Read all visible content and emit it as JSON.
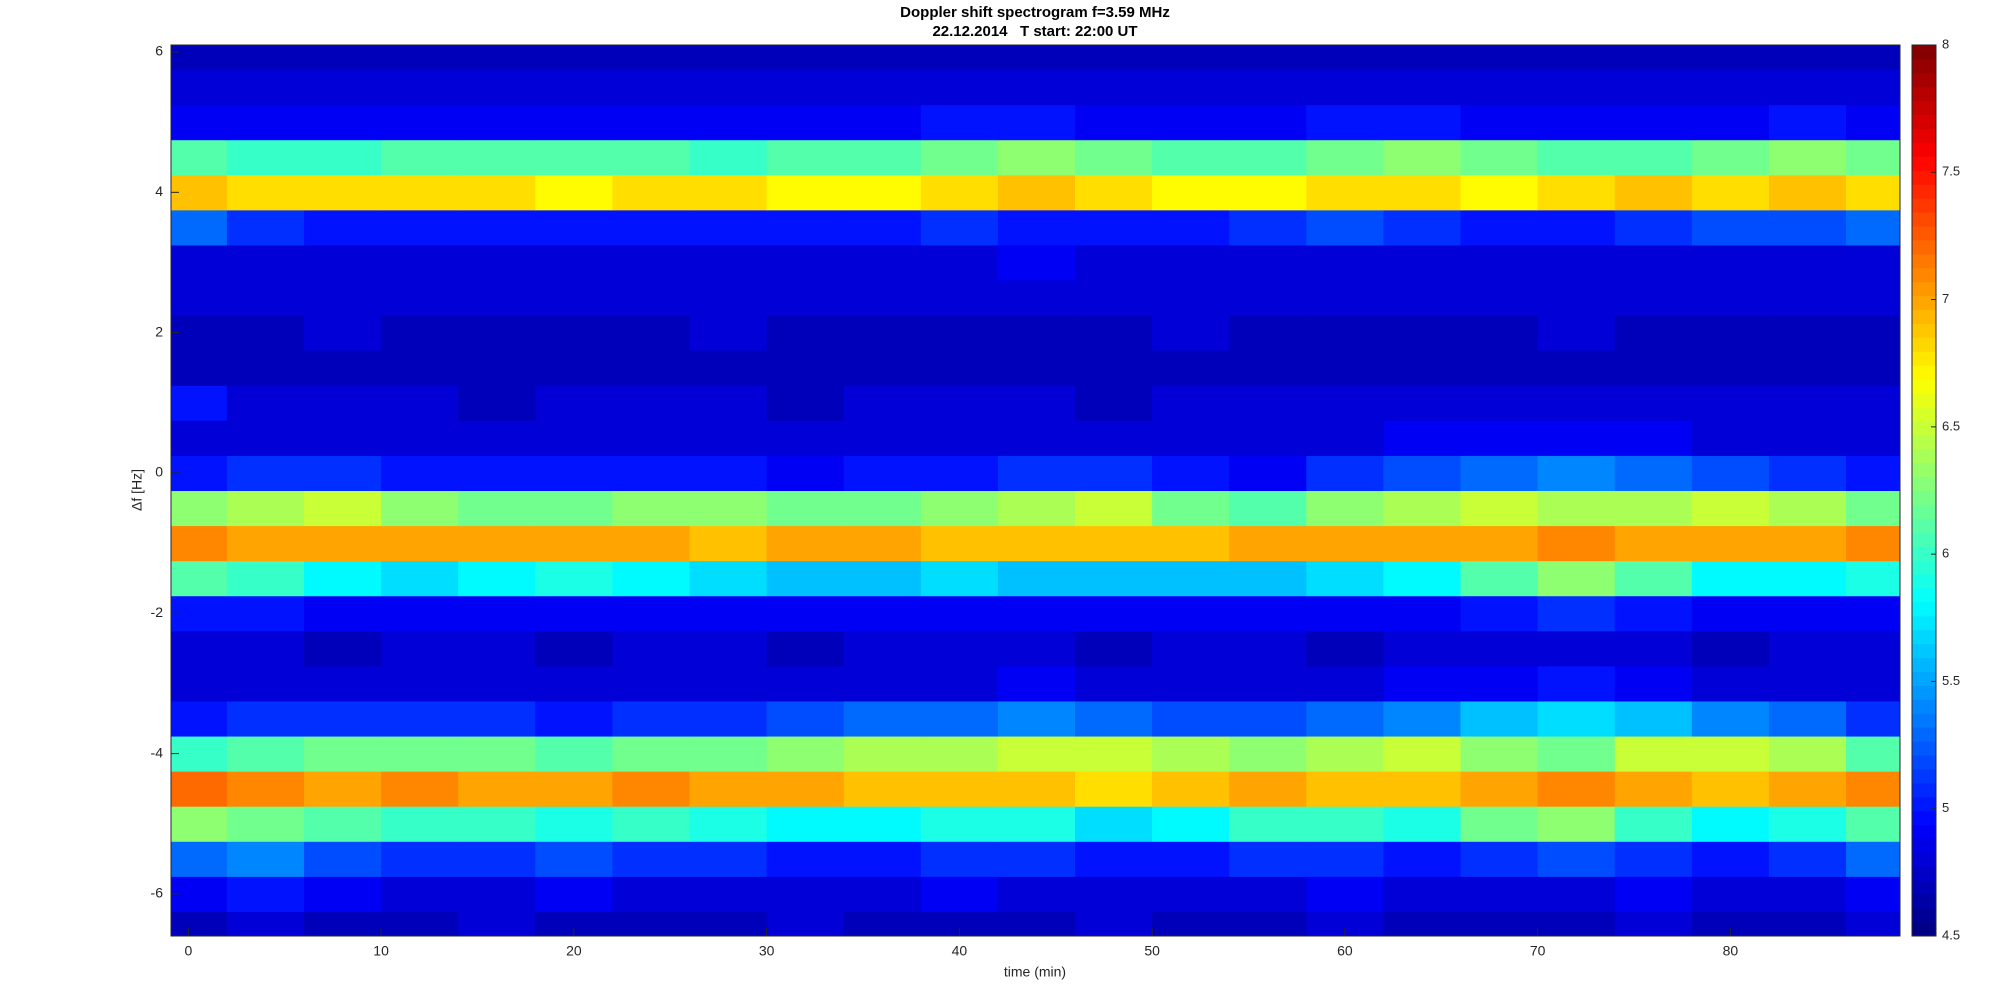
{
  "chart_data": {
    "type": "heatmap",
    "title": "Doppler shift spectrogram f=3.59 MHz",
    "subtitle": "22.12.2014   T start: 22:00 UT",
    "x_label": "time (min)",
    "y_label": "Δf [Hz]",
    "colormap": "jet",
    "xlim": [
      -0.9,
      88.8
    ],
    "xticks": [
      0,
      10,
      20,
      30,
      40,
      50,
      60,
      70,
      80
    ],
    "ylim": [
      -6.6,
      6.1
    ],
    "yticks": [
      -6,
      -4,
      -2,
      0,
      2,
      4,
      6
    ],
    "clim": [
      4.5,
      8
    ],
    "cticks": [
      4.5,
      5,
      5.5,
      6,
      6.5,
      7,
      7.5,
      8
    ],
    "x": [
      0,
      4,
      8,
      12,
      16,
      20,
      24,
      28,
      32,
      36,
      40,
      44,
      48,
      52,
      56,
      60,
      64,
      68,
      72,
      76,
      80,
      84,
      88
    ],
    "y": [
      -6.5,
      -6,
      -5.5,
      -5,
      -4.5,
      -4,
      -3.5,
      -3,
      -2.5,
      -2,
      -1.5,
      -1,
      -0.5,
      0,
      0.5,
      1,
      1.5,
      2,
      2.5,
      3,
      3.5,
      4,
      4.5,
      5,
      5.5,
      6
    ],
    "z": [
      [
        4.7,
        4.8,
        4.7,
        4.7,
        4.8,
        4.7,
        4.7,
        4.7,
        4.8,
        4.7,
        4.7,
        4.7,
        4.8,
        4.7,
        4.7,
        4.8,
        4.7,
        4.7,
        4.7,
        4.8,
        4.7,
        4.7,
        4.8
      ],
      [
        4.9,
        5.0,
        4.9,
        4.8,
        4.8,
        4.9,
        4.8,
        4.8,
        4.8,
        4.8,
        4.9,
        4.8,
        4.8,
        4.8,
        4.8,
        4.9,
        4.8,
        4.8,
        4.8,
        4.9,
        4.8,
        4.8,
        4.9
      ],
      [
        5.3,
        5.4,
        5.2,
        5.1,
        5.1,
        5.2,
        5.1,
        5.1,
        5.0,
        5.0,
        5.1,
        5.1,
        5.0,
        5.0,
        5.1,
        5.1,
        5.0,
        5.1,
        5.2,
        5.1,
        5.0,
        5.1,
        5.3
      ],
      [
        6.3,
        6.2,
        6.1,
        6.0,
        6.0,
        5.9,
        6.0,
        5.9,
        5.8,
        5.8,
        5.9,
        5.9,
        5.7,
        5.8,
        6.0,
        6.0,
        5.9,
        6.2,
        6.3,
        6.0,
        5.8,
        5.9,
        6.1
      ],
      [
        7.2,
        7.1,
        7.0,
        7.1,
        7.0,
        7.0,
        7.1,
        7.0,
        7.0,
        6.9,
        6.9,
        6.9,
        6.8,
        6.9,
        7.0,
        6.9,
        6.9,
        7.0,
        7.1,
        7.0,
        6.9,
        7.0,
        7.1
      ],
      [
        6.0,
        6.1,
        6.2,
        6.2,
        6.2,
        6.1,
        6.2,
        6.2,
        6.3,
        6.4,
        6.4,
        6.5,
        6.5,
        6.4,
        6.3,
        6.4,
        6.5,
        6.3,
        6.2,
        6.5,
        6.5,
        6.4,
        6.1
      ],
      [
        5.0,
        5.1,
        5.1,
        5.1,
        5.1,
        5.0,
        5.1,
        5.1,
        5.2,
        5.3,
        5.3,
        5.4,
        5.3,
        5.2,
        5.2,
        5.3,
        5.4,
        5.6,
        5.7,
        5.6,
        5.4,
        5.3,
        5.1
      ],
      [
        4.8,
        4.8,
        4.8,
        4.8,
        4.8,
        4.8,
        4.8,
        4.8,
        4.8,
        4.8,
        4.8,
        4.9,
        4.8,
        4.8,
        4.8,
        4.8,
        4.9,
        4.9,
        5.0,
        4.9,
        4.8,
        4.8,
        4.8
      ],
      [
        4.8,
        4.8,
        4.7,
        4.8,
        4.8,
        4.7,
        4.8,
        4.8,
        4.7,
        4.8,
        4.8,
        4.8,
        4.7,
        4.8,
        4.8,
        4.7,
        4.8,
        4.8,
        4.8,
        4.8,
        4.7,
        4.8,
        4.8
      ],
      [
        5.0,
        5.0,
        4.9,
        4.9,
        4.9,
        4.9,
        4.9,
        4.9,
        4.9,
        4.9,
        4.9,
        4.9,
        4.9,
        4.9,
        4.9,
        4.9,
        4.9,
        5.0,
        5.1,
        5.0,
        4.9,
        4.9,
        4.9
      ],
      [
        6.1,
        6.0,
        5.8,
        5.7,
        5.8,
        5.9,
        5.8,
        5.7,
        5.6,
        5.6,
        5.7,
        5.6,
        5.6,
        5.6,
        5.6,
        5.7,
        5.8,
        6.1,
        6.3,
        6.1,
        5.8,
        5.8,
        5.9
      ],
      [
        7.1,
        7.0,
        7.0,
        7.0,
        7.0,
        7.0,
        7.0,
        6.9,
        7.0,
        7.0,
        6.9,
        6.9,
        6.9,
        6.9,
        7.0,
        7.0,
        7.0,
        7.0,
        7.1,
        7.0,
        7.0,
        7.0,
        7.1
      ],
      [
        6.3,
        6.4,
        6.5,
        6.3,
        6.2,
        6.2,
        6.3,
        6.3,
        6.2,
        6.2,
        6.3,
        6.4,
        6.5,
        6.2,
        6.1,
        6.3,
        6.4,
        6.5,
        6.4,
        6.4,
        6.5,
        6.4,
        6.2
      ],
      [
        5.0,
        5.1,
        5.1,
        5.0,
        5.0,
        5.0,
        5.0,
        5.0,
        4.9,
        5.0,
        5.0,
        5.1,
        5.1,
        5.0,
        4.9,
        5.1,
        5.2,
        5.3,
        5.4,
        5.3,
        5.2,
        5.1,
        5.0
      ],
      [
        4.8,
        4.8,
        4.8,
        4.8,
        4.8,
        4.8,
        4.8,
        4.8,
        4.8,
        4.8,
        4.8,
        4.8,
        4.8,
        4.8,
        4.8,
        4.8,
        4.9,
        4.9,
        4.9,
        4.9,
        4.8,
        4.8,
        4.8
      ],
      [
        5.0,
        4.8,
        4.8,
        4.8,
        4.7,
        4.8,
        4.8,
        4.8,
        4.7,
        4.8,
        4.8,
        4.8,
        4.7,
        4.8,
        4.8,
        4.8,
        4.8,
        4.8,
        4.8,
        4.8,
        4.8,
        4.8,
        4.8
      ],
      [
        4.7,
        4.7,
        4.7,
        4.7,
        4.7,
        4.7,
        4.7,
        4.7,
        4.7,
        4.7,
        4.7,
        4.7,
        4.7,
        4.7,
        4.7,
        4.7,
        4.7,
        4.7,
        4.7,
        4.7,
        4.7,
        4.7,
        4.7
      ],
      [
        4.7,
        4.7,
        4.8,
        4.7,
        4.7,
        4.7,
        4.7,
        4.8,
        4.7,
        4.7,
        4.7,
        4.7,
        4.7,
        4.8,
        4.7,
        4.7,
        4.7,
        4.7,
        4.8,
        4.7,
        4.7,
        4.7,
        4.7
      ],
      [
        4.8,
        4.8,
        4.8,
        4.8,
        4.8,
        4.8,
        4.8,
        4.8,
        4.8,
        4.8,
        4.8,
        4.8,
        4.8,
        4.8,
        4.8,
        4.8,
        4.8,
        4.8,
        4.8,
        4.8,
        4.8,
        4.8,
        4.8
      ],
      [
        4.8,
        4.8,
        4.8,
        4.8,
        4.8,
        4.8,
        4.8,
        4.8,
        4.8,
        4.8,
        4.8,
        4.9,
        4.8,
        4.8,
        4.8,
        4.8,
        4.8,
        4.8,
        4.8,
        4.8,
        4.8,
        4.8,
        4.8
      ],
      [
        5.3,
        5.1,
        5.0,
        5.0,
        5.0,
        5.0,
        5.0,
        5.0,
        5.0,
        5.0,
        5.1,
        5.0,
        5.0,
        5.0,
        5.1,
        5.2,
        5.1,
        5.0,
        5.0,
        5.1,
        5.2,
        5.2,
        5.3
      ],
      [
        6.9,
        6.8,
        6.8,
        6.8,
        6.8,
        6.7,
        6.8,
        6.8,
        6.7,
        6.7,
        6.8,
        6.9,
        6.8,
        6.7,
        6.7,
        6.8,
        6.8,
        6.7,
        6.8,
        6.9,
        6.8,
        6.9,
        6.8
      ],
      [
        6.1,
        6.0,
        6.0,
        6.1,
        6.1,
        6.1,
        6.1,
        6.0,
        6.1,
        6.1,
        6.2,
        6.3,
        6.2,
        6.1,
        6.1,
        6.2,
        6.3,
        6.2,
        6.1,
        6.1,
        6.2,
        6.3,
        6.2
      ],
      [
        4.9,
        4.9,
        4.9,
        4.9,
        4.9,
        4.9,
        4.9,
        4.9,
        4.9,
        4.9,
        5.0,
        5.0,
        4.9,
        4.9,
        4.9,
        5.0,
        5.0,
        4.9,
        4.9,
        4.9,
        4.9,
        5.0,
        4.9
      ],
      [
        4.8,
        4.8,
        4.8,
        4.8,
        4.8,
        4.8,
        4.8,
        4.8,
        4.8,
        4.8,
        4.8,
        4.8,
        4.8,
        4.8,
        4.8,
        4.8,
        4.8,
        4.8,
        4.8,
        4.8,
        4.8,
        4.8,
        4.8
      ],
      [
        4.7,
        4.7,
        4.7,
        4.7,
        4.7,
        4.7,
        4.7,
        4.7,
        4.7,
        4.7,
        4.7,
        4.7,
        4.7,
        4.7,
        4.7,
        4.7,
        4.7,
        4.7,
        4.7,
        4.7,
        4.7,
        4.7,
        4.7
      ]
    ]
  }
}
